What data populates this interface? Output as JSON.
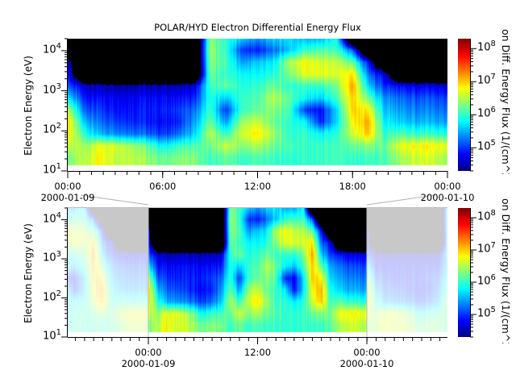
{
  "chart_data": [
    {
      "type": "heatmap",
      "title": "POLAR/HYD  Electron Differential Energy Flux",
      "ylabel": "Electron Energy (eV)",
      "zlabel": "on Diff. Energy Flux (1/(cm^2",
      "y_scale": "log",
      "z_scale": "log",
      "ylim": [
        10,
        20000
      ],
      "zlim": [
        20000,
        200000000
      ],
      "colormap": "jet, black where below range",
      "x_ticks": [
        {
          "time": "00:00",
          "date": "2000-01-09"
        },
        {
          "time": "06:00",
          "date": ""
        },
        {
          "time": "12:00",
          "date": ""
        },
        {
          "time": "18:00",
          "date": ""
        },
        {
          "time": "00:00",
          "date": "2000-01-10"
        }
      ],
      "y_ticks": [
        {
          "base": "10",
          "exp": "1"
        },
        {
          "base": "10",
          "exp": "2"
        },
        {
          "base": "10",
          "exp": "3"
        },
        {
          "base": "10",
          "exp": "4"
        }
      ],
      "z_ticks": [
        {
          "base": "10",
          "exp": "5"
        },
        {
          "base": "10",
          "exp": "6"
        },
        {
          "base": "10",
          "exp": "7"
        },
        {
          "base": "10",
          "exp": "8"
        }
      ],
      "x_hours": [
        0,
        1,
        2,
        3,
        4,
        5,
        6,
        7,
        8,
        9,
        10,
        11,
        12,
        13,
        14,
        15,
        16,
        17,
        18,
        19,
        20,
        21,
        22,
        23,
        24
      ],
      "energies_eV": [
        20,
        40,
        80,
        160,
        320,
        640,
        1280,
        2560,
        5120,
        10240,
        20000
      ],
      "log10_flux_by_hour": [
        [
          6.3,
          6.6,
          6.9,
          7.0,
          6.6,
          5.8,
          5.2,
          4.9,
          4.7,
          null,
          null
        ],
        [
          6.5,
          6.4,
          6.0,
          5.6,
          5.2,
          4.9,
          4.6,
          null,
          null,
          null,
          null
        ],
        [
          6.8,
          6.7,
          5.5,
          5.2,
          5.0,
          4.8,
          4.5,
          null,
          null,
          null,
          null
        ],
        [
          6.6,
          6.7,
          5.4,
          5.1,
          4.9,
          4.8,
          4.5,
          null,
          null,
          null,
          null
        ],
        [
          6.6,
          6.5,
          5.3,
          5.0,
          4.9,
          4.8,
          4.5,
          null,
          null,
          null,
          null
        ],
        [
          6.4,
          6.2,
          5.2,
          4.9,
          4.9,
          4.8,
          4.5,
          null,
          null,
          null,
          null
        ],
        [
          6.2,
          5.8,
          5.0,
          4.8,
          4.9,
          4.8,
          4.5,
          null,
          null,
          null,
          null
        ],
        [
          6.3,
          6.0,
          5.2,
          4.9,
          5.0,
          4.8,
          4.5,
          null,
          null,
          null,
          null
        ],
        [
          6.3,
          6.1,
          5.6,
          5.4,
          5.2,
          4.9,
          4.6,
          null,
          null,
          null,
          null
        ],
        [
          6.0,
          6.2,
          6.5,
          6.2,
          6.0,
          5.9,
          6.0,
          6.2,
          6.3,
          6.4,
          6.3
        ],
        [
          6.2,
          6.6,
          6.0,
          5.4,
          5.0,
          5.6,
          6.2,
          6.0,
          6.1,
          6.0,
          6.0
        ],
        [
          6.0,
          6.3,
          6.6,
          6.4,
          6.0,
          6.0,
          5.9,
          5.8,
          5.4,
          5.0,
          5.6
        ],
        [
          6.1,
          6.5,
          6.9,
          6.6,
          6.2,
          6.1,
          6.0,
          5.8,
          5.6,
          4.9,
          5.4
        ],
        [
          6.0,
          6.2,
          6.4,
          6.2,
          6.3,
          6.5,
          6.2,
          5.9,
          5.7,
          5.2,
          5.6
        ],
        [
          6.0,
          6.1,
          6.0,
          6.0,
          6.1,
          6.2,
          6.0,
          6.3,
          6.5,
          5.6,
          5.7
        ],
        [
          6.0,
          6.0,
          6.0,
          5.8,
          5.0,
          5.8,
          6.0,
          6.7,
          6.8,
          6.0,
          5.5
        ],
        [
          6.0,
          6.0,
          5.8,
          4.9,
          4.8,
          5.6,
          6.0,
          6.7,
          6.6,
          6.1,
          5.5
        ],
        [
          6.0,
          6.0,
          5.9,
          5.6,
          5.6,
          6.0,
          6.2,
          6.6,
          6.5,
          6.0,
          5.8
        ],
        [
          6.0,
          6.2,
          6.6,
          6.8,
          7.0,
          7.0,
          7.2,
          6.9,
          6.2,
          5.2,
          null
        ],
        [
          6.0,
          6.3,
          7.0,
          7.1,
          6.8,
          6.2,
          5.6,
          5.2,
          4.8,
          null,
          null
        ],
        [
          6.1,
          6.2,
          6.0,
          5.8,
          5.6,
          5.4,
          5.0,
          4.7,
          null,
          null,
          null
        ],
        [
          6.4,
          6.7,
          6.1,
          5.6,
          5.4,
          5.2,
          4.8,
          null,
          null,
          null,
          null
        ],
        [
          6.6,
          6.8,
          6.0,
          5.5,
          5.3,
          5.1,
          4.7,
          null,
          null,
          null,
          null
        ],
        [
          6.6,
          6.8,
          6.0,
          5.5,
          5.3,
          5.1,
          4.7,
          null,
          null,
          null,
          null
        ],
        [
          6.4,
          6.7,
          5.9,
          5.4,
          5.2,
          5.0,
          4.6,
          null,
          null,
          null,
          null
        ]
      ]
    },
    {
      "type": "heatmap",
      "title": "",
      "ylabel": "Electron Energy (eV)",
      "zlabel": "on Diff. Energy Flux (1/(cm^2",
      "x_ticks": [
        {
          "time": "00:00",
          "date": "2000-01-09"
        },
        {
          "time": "12:00",
          "date": ""
        },
        {
          "time": "00:00",
          "date": "2000-01-10"
        }
      ],
      "y_ticks": [
        {
          "base": "10",
          "exp": "1"
        },
        {
          "base": "10",
          "exp": "2"
        },
        {
          "base": "10",
          "exp": "3"
        },
        {
          "base": "10",
          "exp": "4"
        }
      ],
      "z_ticks": [
        {
          "base": "10",
          "exp": "5"
        },
        {
          "base": "10",
          "exp": "6"
        },
        {
          "base": "10",
          "exp": "7"
        },
        {
          "base": "10",
          "exp": "8"
        }
      ]
    }
  ],
  "colors": {
    "background": "#ffffff",
    "no_data": "#c8c8c8",
    "connector": "#b0b0b0"
  }
}
